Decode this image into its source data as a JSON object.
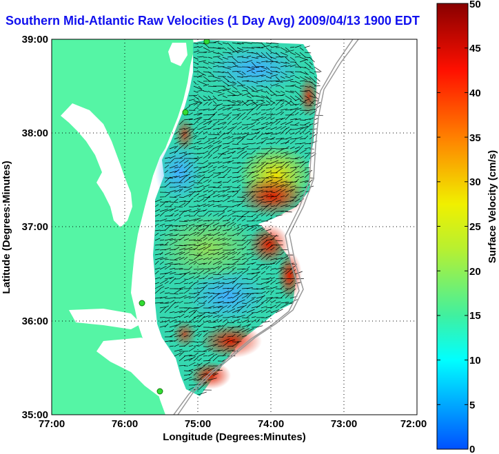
{
  "figure": {
    "title": "Southern Mid-Atlantic Raw Velocities (1 Day Avg) 2009/04/13 1900 EDT",
    "xlabel": "Longitude (Degrees:Minutes)",
    "ylabel": "Latitude (Degrees:Minutes)",
    "colorbar_label": "Surface Velocity (cm/s)"
  },
  "map": {
    "lon_range": [
      -77,
      -72
    ],
    "lat_range": [
      35,
      39
    ],
    "lon_ticks": [
      "77:00",
      "76:00",
      "75:00",
      "74:00",
      "73:00",
      "72:00"
    ],
    "lat_ticks": [
      "39:00",
      "38:00",
      "37:00",
      "36:00",
      "35:00"
    ],
    "land_color": "#55f5a5",
    "ocean_color": "#ffffff",
    "arrow_color": "#000000",
    "station_color": "#33dd33",
    "isobath_color": "#999999",
    "grid_lines": true
  },
  "colorbar": {
    "min": 0,
    "max": 50,
    "ticks": [
      "0",
      "5",
      "10",
      "15",
      "20",
      "25",
      "30",
      "35",
      "40",
      "45",
      "50"
    ],
    "colormap": "jet"
  }
}
